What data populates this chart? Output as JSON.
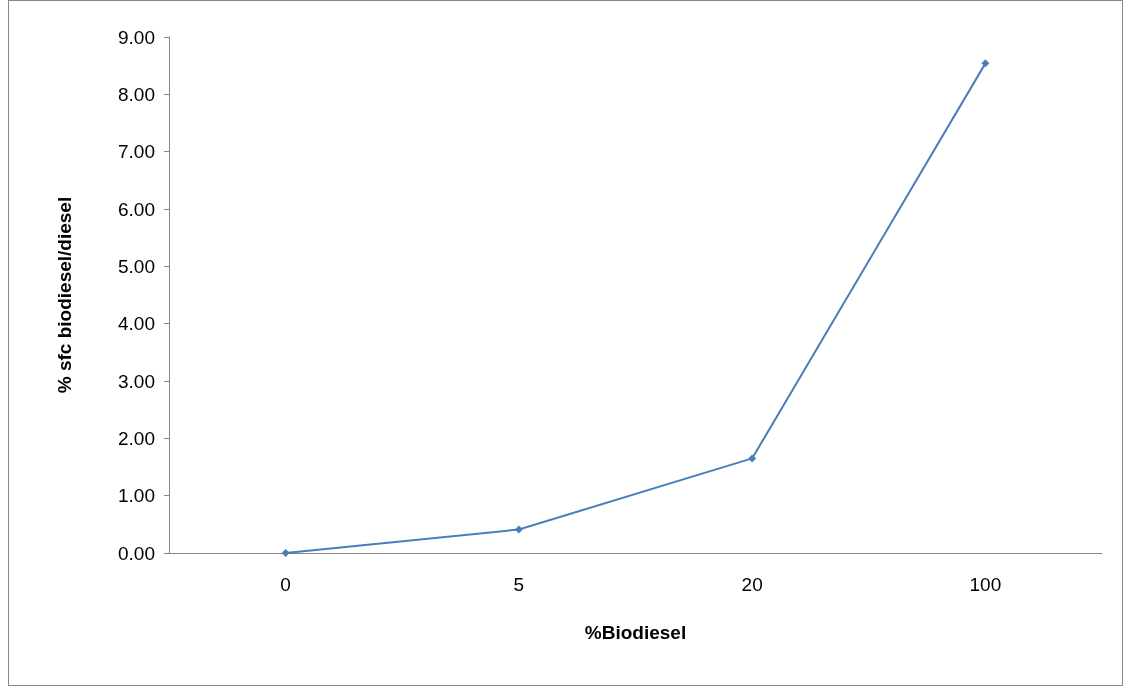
{
  "chart_data": {
    "type": "line",
    "xlabel": "%Biodiesel",
    "ylabel": "% sfc biodiesel/diesel",
    "categories": [
      "0",
      "5",
      "20",
      "100"
    ],
    "series": [
      {
        "color": "#4a7ebb",
        "values": [
          0,
          0.41,
          1.65,
          8.54
        ]
      }
    ],
    "ylim": [
      0,
      9
    ],
    "yticks": [
      {
        "value": 0,
        "label": "0.00"
      },
      {
        "value": 1,
        "label": "1.00"
      },
      {
        "value": 2,
        "label": "2.00"
      },
      {
        "value": 3,
        "label": "3.00"
      },
      {
        "value": 4,
        "label": "4.00"
      },
      {
        "value": 5,
        "label": "5.00"
      },
      {
        "value": 6,
        "label": "6.00"
      },
      {
        "value": 7,
        "label": "7.00"
      },
      {
        "value": 8,
        "label": "8.00"
      },
      {
        "value": 9,
        "label": "9.00"
      }
    ],
    "grid": false,
    "marker": "diamond",
    "line_style": "solid"
  }
}
